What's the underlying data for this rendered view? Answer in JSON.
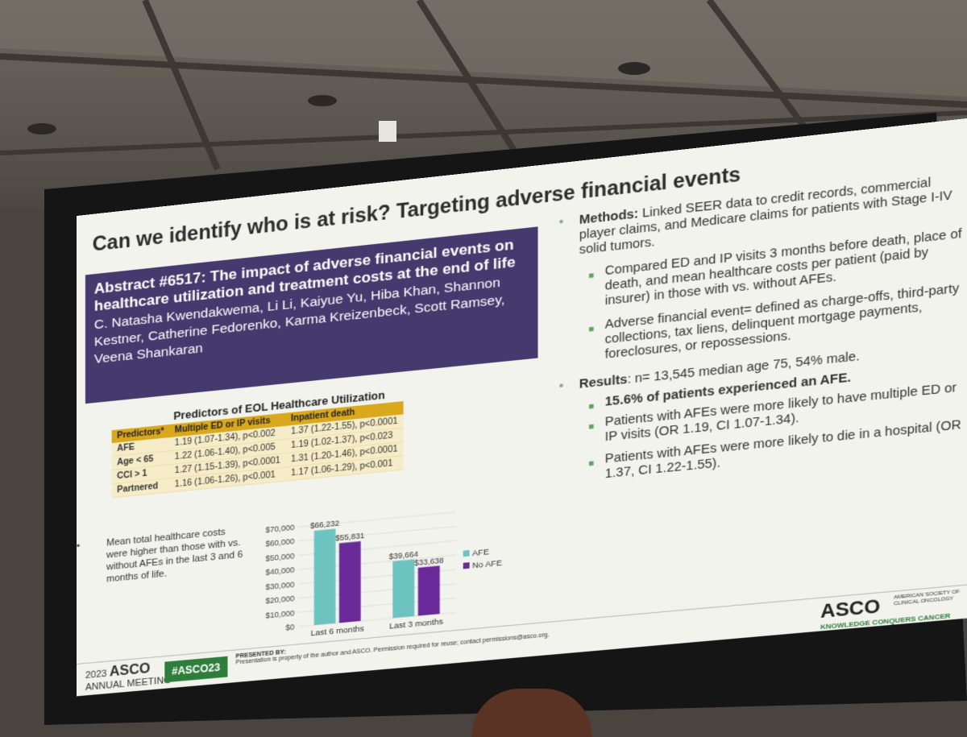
{
  "slide": {
    "title": "Can we identify who is at risk? Targeting adverse financial events",
    "abstract_title": "Abstract #6517: The impact of adverse financial events on healthcare utilization and treatment costs at the end of life",
    "authors": "C. Natasha Kwendakwema, Li Li, Kaiyue Yu, Hiba Khan, Shannon Kestner, Catherine Fedorenko, Karma Kreizenbeck, Scott Ramsey, Veena Shankaran",
    "table": {
      "title": "Predictors of EOL Healthcare Utilization",
      "headers": [
        "Predictors*",
        "Multiple ED or IP visits",
        "Inpatient death"
      ],
      "rows": [
        [
          "AFE",
          "1.19 (1.07-1.34), p<0.002",
          "1.37 (1.22-1.55), p<0.0001"
        ],
        [
          "Age < 65",
          "1.22 (1.06-1.40), p<0.005",
          "1.19 (1.02-1.37), p<0.023"
        ],
        [
          "CCI > 1",
          "1.27 (1.15-1.39), p<0.0001",
          "1.31 (1.20-1.46), p<0.0001"
        ],
        [
          "Partnered",
          "1.16 (1.06-1.26), p<0.001",
          "1.17 (1.06-1.29), p<0.001"
        ]
      ]
    },
    "costs_bullet": "Mean total healthcare costs were higher than those with vs. without AFEs in the last 3 and 6 months of life.",
    "right": {
      "methods_label": "Methods:",
      "methods_text": " Linked SEER data to credit records, commercial player claims, and Medicare claims for patients with Stage I-IV solid tumors.",
      "sub1": "Compared ED and IP visits 3 months before death, place of death, and mean healthcare costs per patient (paid by insurer) in those with vs. without AFEs.",
      "sub2": "Adverse financial event= defined as charge-offs, third-party collections, tax liens, delinquent mortgage payments, foreclosures, or repossessions.",
      "results_label": "Results",
      "results_text": ": n= 13,545 median age 75, 54% male.",
      "r1": "15.6% of patients experienced an AFE.",
      "r2": "Patients with AFEs were more likely to have multiple ED or IP visits (OR 1.19, CI 1.07-1.34).",
      "r3": "Patients with AFEs were more likely to die in a hospital (OR 1.37, CI 1.22-1.55)."
    },
    "footer": {
      "year": "2023",
      "asco": "ASCO",
      "annual": "ANNUAL MEETING",
      "hashtag": "#ASCO23",
      "presented_by": "PRESENTED BY:",
      "notice": "Presentation is property of the author and ASCO. Permission required for reuse; contact permissions@asco.org.",
      "logo": "ASCO",
      "society": "AMERICAN SOCIETY OF CLINICAL ONCOLOGY",
      "tagline": "KNOWLEDGE CONQUERS CANCER"
    }
  },
  "chart_data": {
    "type": "bar",
    "categories": [
      "Last 6 months",
      "Last 3 months"
    ],
    "series": [
      {
        "name": "AFE",
        "values": [
          66232,
          39664
        ],
        "labels": [
          "$66,232",
          "$39,664"
        ],
        "color": "#6cc3c0"
      },
      {
        "name": "No AFE",
        "values": [
          55831,
          33638
        ],
        "labels": [
          "$55,831",
          "$33,638"
        ],
        "color": "#6a2a9a"
      }
    ],
    "ylim": [
      0,
      70000
    ],
    "yticks": [
      "$0",
      "$10,000",
      "$20,000",
      "$30,000",
      "$40,000",
      "$50,000",
      "$60,000",
      "$70,000"
    ],
    "legend": "right",
    "grid": true
  }
}
